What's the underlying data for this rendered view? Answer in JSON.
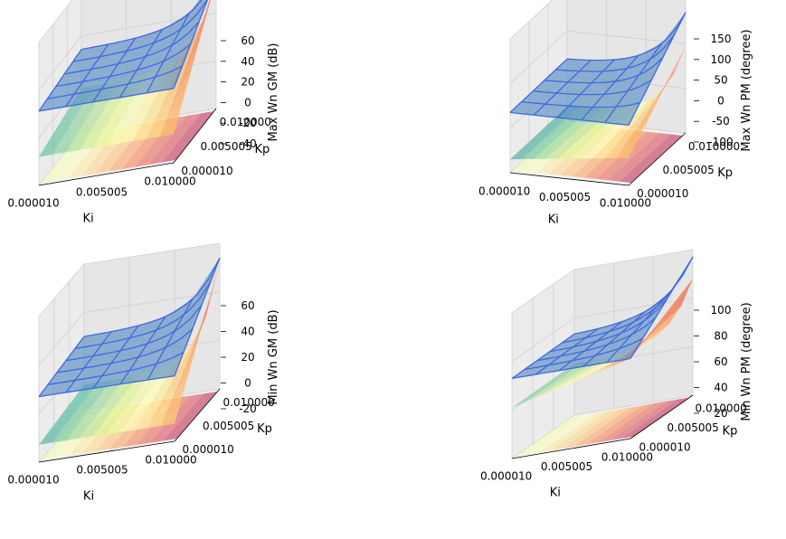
{
  "figure": {
    "rows": 2,
    "cols": 2
  },
  "chart_data": [
    {
      "type": "surface3d",
      "title": "",
      "xlabel": "Ki",
      "ylabel": "Kp",
      "zlabel": "Max Wn GM (dB)",
      "x_ticks": [
        "0.000010",
        "0.005005",
        "0.010000"
      ],
      "y_ticks": [
        "0.000010",
        "0.005005",
        "0.010000"
      ],
      "z_ticks": [
        "-40",
        "-20",
        "0",
        "20",
        "40",
        "60"
      ],
      "xlim": [
        1e-05,
        0.01
      ],
      "ylim": [
        1e-05,
        0.01
      ],
      "zlim": [
        -50,
        60
      ],
      "series": [
        {
          "name": "surface (Spectral colormap)",
          "style": "surface",
          "color": "#d53e4f"
        },
        {
          "name": "wireframe",
          "style": "wireframe",
          "color": "#4169e1"
        }
      ]
    },
    {
      "type": "surface3d",
      "title": "",
      "xlabel": "Ki",
      "ylabel": "Kp",
      "zlabel": "Max Wn PM (degree)",
      "x_ticks": [
        "0.000010",
        "0.005005",
        "0.010000"
      ],
      "y_ticks": [
        "0.000010",
        "0.005005",
        "0.010000"
      ],
      "z_ticks": [
        "-100",
        "-50",
        "0",
        "50",
        "100",
        "150"
      ],
      "xlim": [
        1e-05,
        0.01
      ],
      "ylim": [
        1e-05,
        0.01
      ],
      "zlim": [
        -100,
        150
      ],
      "series": [
        {
          "name": "surface (Spectral colormap)",
          "style": "surface",
          "color": "#d53e4f"
        },
        {
          "name": "wireframe",
          "style": "wireframe",
          "color": "#4169e1"
        }
      ]
    },
    {
      "type": "surface3d",
      "title": "",
      "xlabel": "Ki",
      "ylabel": "Kp",
      "zlabel": "Min Wn GM (dB)",
      "x_ticks": [
        "0.000010",
        "0.005005",
        "0.010000"
      ],
      "y_ticks": [
        "0.000010",
        "0.005005",
        "0.010000"
      ],
      "z_ticks": [
        "-20",
        "0",
        "20",
        "40",
        "60"
      ],
      "xlim": [
        1e-05,
        0.01
      ],
      "ylim": [
        1e-05,
        0.01
      ],
      "zlim": [
        -20,
        60
      ],
      "series": [
        {
          "name": "surface (Spectral colormap)",
          "style": "surface",
          "color": "#d53e4f"
        },
        {
          "name": "wireframe",
          "style": "wireframe",
          "color": "#4169e1"
        }
      ]
    },
    {
      "type": "surface3d",
      "title": "",
      "xlabel": "Ki",
      "ylabel": "Kp",
      "zlabel": "Min Wn PM (degree)",
      "x_ticks": [
        "0.000010",
        "0.005005",
        "0.010000"
      ],
      "y_ticks": [
        "0.000010",
        "0.005005",
        "0.010000"
      ],
      "z_ticks": [
        "20",
        "40",
        "60",
        "80",
        "100"
      ],
      "xlim": [
        1e-05,
        0.01
      ],
      "ylim": [
        1e-05,
        0.01
      ],
      "zlim": [
        20,
        100
      ],
      "series": [
        {
          "name": "surface (Spectral colormap)",
          "style": "surface",
          "color": "#d53e4f"
        },
        {
          "name": "wireframe",
          "style": "wireframe",
          "color": "#4169e1"
        }
      ]
    }
  ]
}
